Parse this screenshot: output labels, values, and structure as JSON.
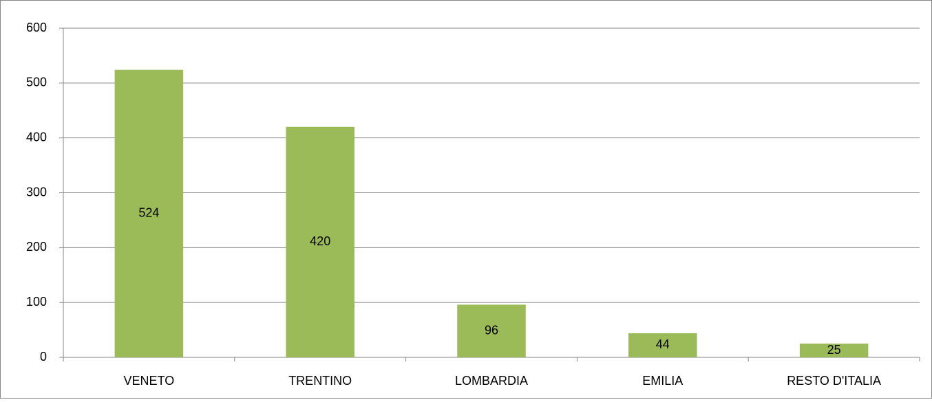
{
  "chart_data": {
    "type": "bar",
    "categories": [
      "VENETO",
      "TRENTINO",
      "LOMBARDIA",
      "EMILIA",
      "RESTO D'ITALIA"
    ],
    "values": [
      524,
      420,
      96,
      44,
      25
    ],
    "color": "#9bbb59",
    "ylim": [
      0,
      600
    ],
    "yticks": [
      0,
      100,
      200,
      300,
      400,
      500,
      600
    ],
    "grid": true,
    "data_labels": true
  }
}
